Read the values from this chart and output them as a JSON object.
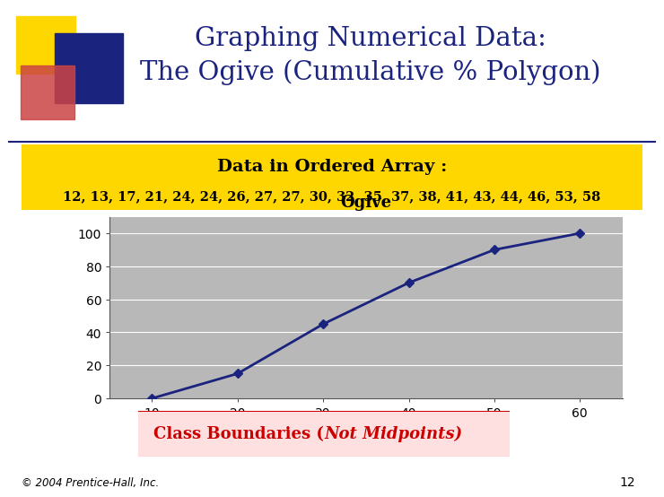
{
  "title_line1": "Graphing Numerical Data:",
  "title_line2": "The Ogive (Cumulative % Polygon)",
  "title_color": "#1a237e",
  "ordered_array_label": "Data in Ordered Array :",
  "ordered_array_data": "12, 13, 17, 21, 24, 24, 26, 27, 27, 30, 32, 35, 37, 38, 41, 43, 44, 46, 53, 58",
  "chart_title": "Ogive",
  "x_values": [
    10,
    20,
    30,
    40,
    50,
    60
  ],
  "y_values": [
    0,
    15,
    45,
    70,
    90,
    100
  ],
  "ylim": [
    0,
    110
  ],
  "xlim": [
    5,
    65
  ],
  "yticks": [
    0,
    20,
    40,
    60,
    80,
    100
  ],
  "xticks": [
    10,
    20,
    30,
    40,
    50,
    60
  ],
  "line_color": "#1a237e",
  "marker_color": "#1a237e",
  "plot_bg_color": "#b8b8b8",
  "bg_color": "#ffffff",
  "yellow_band_color": "#ffd700",
  "footer_text": "© 2004 Prentice-Hall, Inc.",
  "footer_number": "12",
  "class_boundaries_box_color": "#ffe0e0",
  "class_boundaries_text_color": "#cc0000",
  "class_boundaries_border_color": "#cc0000",
  "deco_blue": "#1a237e",
  "deco_yellow": "#ffd700",
  "deco_red": "#cc4444"
}
